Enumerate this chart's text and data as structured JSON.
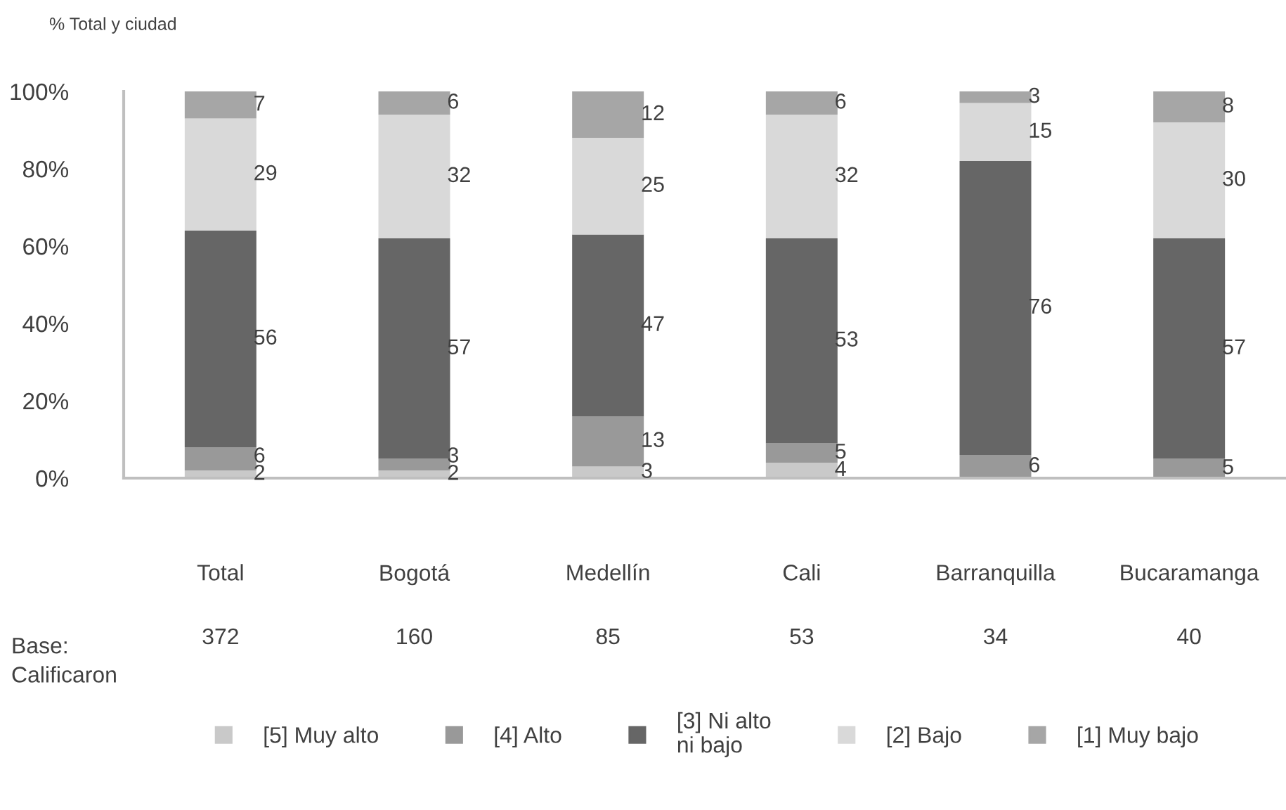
{
  "chart_data": {
    "type": "bar",
    "stacked": true,
    "subtitle": "% Total y ciudad",
    "categories": [
      "Total",
      "Bogotá",
      "Medellín",
      "Cali",
      "Barranquilla",
      "Bucaramanga"
    ],
    "series": [
      {
        "name": "[5] Muy alto",
        "color": "#c9c9c9",
        "values": [
          2,
          2,
          3,
          4,
          null,
          null
        ]
      },
      {
        "name": "[4] Alto",
        "color": "#999999",
        "values": [
          6,
          3,
          13,
          5,
          6,
          5
        ]
      },
      {
        "name": "[3] Ni alto\nni bajo",
        "color": "#666666",
        "values": [
          56,
          57,
          47,
          53,
          76,
          57
        ]
      },
      {
        "name": "[2] Bajo",
        "color": "#d9d9d9",
        "values": [
          29,
          32,
          25,
          32,
          15,
          30
        ]
      },
      {
        "name": "[1] Muy bajo",
        "color": "#a6a6a6",
        "values": [
          7,
          6,
          12,
          6,
          3,
          8
        ]
      }
    ],
    "ylim": [
      0,
      100
    ],
    "yticks": [
      {
        "value": 0,
        "label": "0%"
      },
      {
        "value": 20,
        "label": "20%"
      },
      {
        "value": 40,
        "label": "40%"
      },
      {
        "value": 60,
        "label": "60%"
      },
      {
        "value": 80,
        "label": "80%"
      },
      {
        "value": 100,
        "label": "100%"
      }
    ],
    "data_labels": true,
    "grid": false,
    "legend": "bottom",
    "annotations": [
      "Base:\nCalificaron",
      "372",
      "160",
      "85",
      "53",
      "34",
      "40"
    ]
  }
}
